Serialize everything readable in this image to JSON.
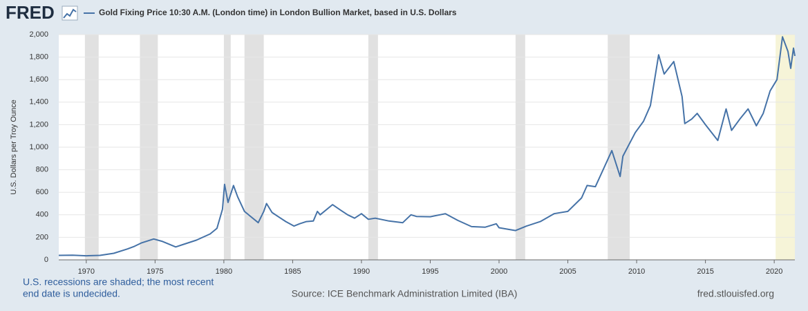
{
  "chart_data": {
    "type": "line",
    "logo": "FRED",
    "title": "Gold Fixing Price 10:30 A.M. (London time) in London Bullion Market, based in U.S. Dollars",
    "y_label": "U.S. Dollars per Troy Ounce",
    "note_lines": [
      "U.S. recessions are shaded; the most recent",
      "end date is undecided."
    ],
    "source": "Source: ICE Benchmark Administration Limited (IBA)",
    "site": "fred.stlouisfed.org",
    "xlim": [
      1968,
      2021.5
    ],
    "ylim": [
      0,
      2000
    ],
    "xticks": [
      1970,
      1975,
      1980,
      1985,
      1990,
      1995,
      2000,
      2005,
      2010,
      2015,
      2020
    ],
    "yticks": [
      0,
      200,
      400,
      600,
      800,
      {
        "value": 1000,
        "label": "1,000"
      },
      {
        "value": 1200,
        "label": "1,200"
      },
      {
        "value": 1400,
        "label": "1,400"
      },
      {
        "value": 1600,
        "label": "1,600"
      },
      {
        "value": 1800,
        "label": "1,800"
      },
      {
        "value": 2000,
        "label": "2,000"
      }
    ],
    "grid": true,
    "recessions": [
      [
        1969.9,
        1970.9
      ],
      [
        1973.9,
        1975.2
      ],
      [
        1980.0,
        1980.5
      ],
      [
        1981.5,
        1982.9
      ],
      [
        1990.5,
        1991.2
      ],
      [
        2001.2,
        2001.9
      ],
      [
        2007.9,
        2009.5
      ],
      [
        2020.1,
        2021.5
      ]
    ],
    "recession_color": "#e1e1e1",
    "undecided_color": "#f6f4d8",
    "x": [
      1968,
      1969,
      1970,
      1971,
      1972,
      1973,
      1973.5,
      1974,
      1974.9,
      1975.5,
      1976.5,
      1977,
      1978,
      1979,
      1979.5,
      1979.9,
      1980.05,
      1980.3,
      1980.7,
      1981,
      1981.5,
      1982,
      1982.5,
      1982.9,
      1983.1,
      1983.5,
      1984,
      1984.5,
      1985.1,
      1985.5,
      1986,
      1986.5,
      1986.8,
      1987,
      1987.9,
      1988.5,
      1989,
      1989.5,
      1990,
      1990.5,
      1991,
      1992,
      1993,
      1993.6,
      1994,
      1995,
      1996.1,
      1997,
      1998,
      1999,
      1999.8,
      2000,
      2001.2,
      2002,
      2003,
      2004,
      2005,
      2006,
      2006.4,
      2007,
      2008.2,
      2008.8,
      2009,
      2009.9,
      2010.5,
      2011,
      2011.6,
      2012,
      2012.7,
      2013.3,
      2013.5,
      2014,
      2014.4,
      2015,
      2015.9,
      2016.5,
      2016.9,
      2017.5,
      2018.1,
      2018.7,
      2019.2,
      2019.7,
      2020.2,
      2020.6,
      2021,
      2021.2,
      2021.4,
      2021.5
    ],
    "series": [
      {
        "name": "Gold Fixing Price 10:30 A.M. (London time) in London Bullion Market, based in U.S. Dollars",
        "color": "#4572a7",
        "values": [
          40,
          41,
          36,
          40,
          58,
          97,
          120,
          150,
          185,
          165,
          115,
          135,
          175,
          230,
          280,
          450,
          670,
          510,
          660,
          560,
          430,
          380,
          330,
          430,
          500,
          420,
          380,
          340,
          300,
          320,
          340,
          345,
          430,
          400,
          490,
          440,
          400,
          370,
          410,
          360,
          370,
          345,
          330,
          400,
          385,
          383,
          410,
          350,
          295,
          290,
          320,
          285,
          260,
          300,
          340,
          410,
          430,
          550,
          660,
          650,
          970,
          740,
          920,
          1130,
          1230,
          1370,
          1820,
          1650,
          1760,
          1450,
          1210,
          1250,
          1300,
          1200,
          1060,
          1340,
          1150,
          1250,
          1340,
          1190,
          1300,
          1500,
          1600,
          1980,
          1850,
          1700,
          1880,
          1810
        ]
      }
    ]
  }
}
